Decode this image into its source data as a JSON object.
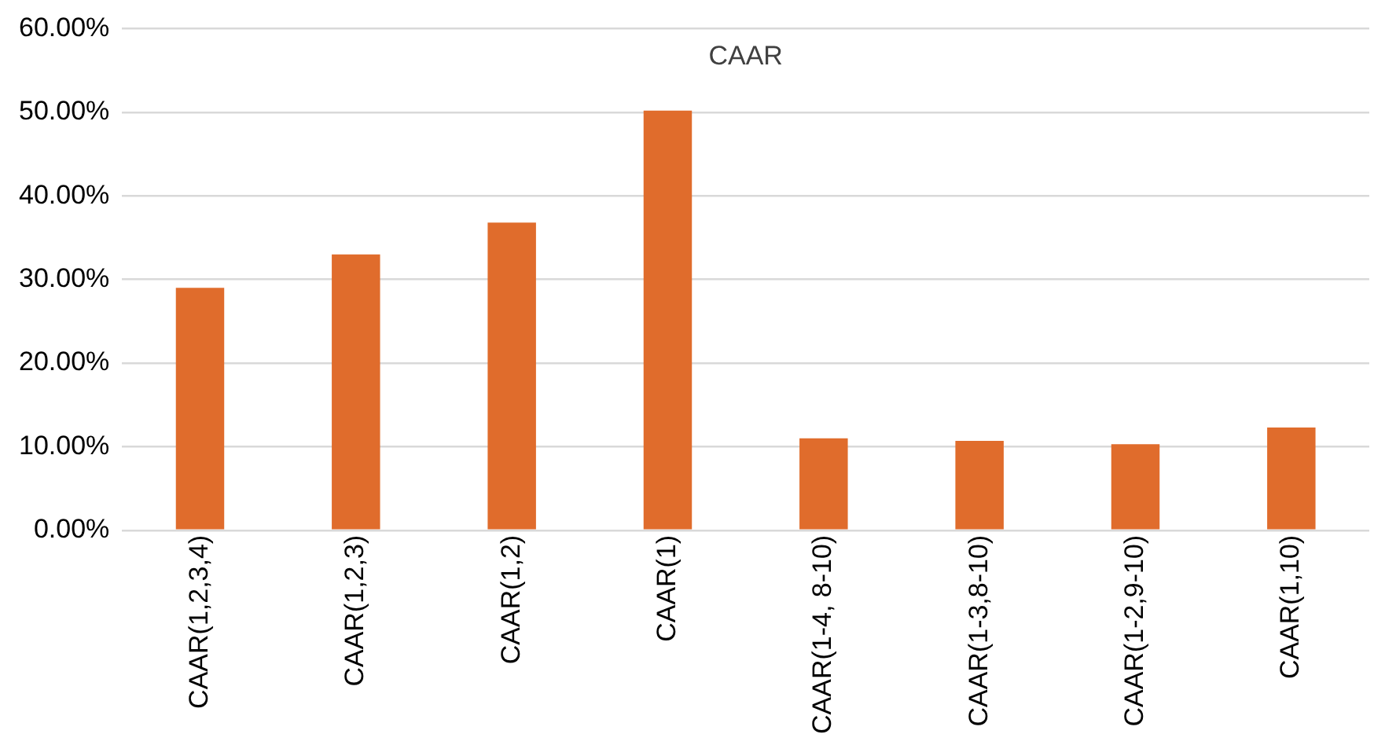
{
  "chart_data": {
    "type": "bar",
    "title": "CAAR",
    "categories": [
      "CAAR(1,2,3,4)",
      "CAAR(1,2,3)",
      "CAAR(1,2)",
      "CAAR(1)",
      "CAAR(1-4, 8-10)",
      "CAAR(1-3,8-10)",
      "CAAR(1-2,9-10)",
      "CAAR(1,10)"
    ],
    "values": [
      29,
      33,
      36.8,
      50.2,
      11,
      10.7,
      10.3,
      12.3
    ],
    "color": "#e06c2c",
    "ylim": [
      0,
      60
    ],
    "yticks": [
      {
        "value": 0,
        "label": "0.00%"
      },
      {
        "value": 10,
        "label": "10.00%"
      },
      {
        "value": 20,
        "label": "20.00%"
      },
      {
        "value": 30,
        "label": "30.00%"
      },
      {
        "value": 40,
        "label": "40.00%"
      },
      {
        "value": 50,
        "label": "50.00%"
      },
      {
        "value": 60,
        "label": "60.00%"
      }
    ],
    "grid": "y",
    "legend": false
  }
}
